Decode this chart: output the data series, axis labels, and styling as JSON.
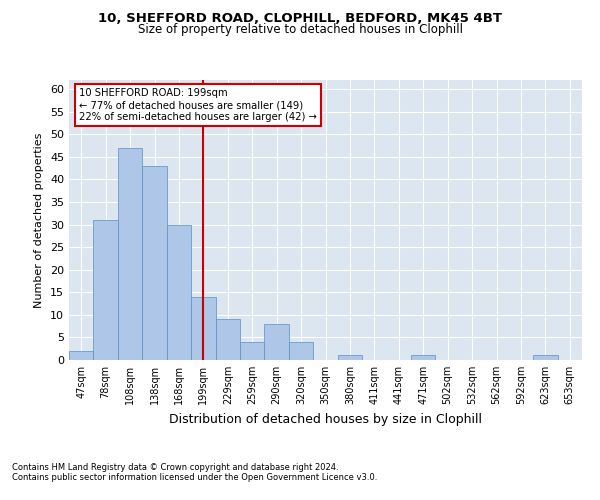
{
  "title_line1": "10, SHEFFORD ROAD, CLOPHILL, BEDFORD, MK45 4BT",
  "title_line2": "Size of property relative to detached houses in Clophill",
  "xlabel": "Distribution of detached houses by size in Clophill",
  "ylabel": "Number of detached properties",
  "categories": [
    "47sqm",
    "78sqm",
    "108sqm",
    "138sqm",
    "168sqm",
    "199sqm",
    "229sqm",
    "259sqm",
    "290sqm",
    "320sqm",
    "350sqm",
    "380sqm",
    "411sqm",
    "441sqm",
    "471sqm",
    "502sqm",
    "532sqm",
    "562sqm",
    "592sqm",
    "623sqm",
    "653sqm"
  ],
  "values": [
    2,
    31,
    47,
    43,
    30,
    14,
    9,
    4,
    8,
    4,
    0,
    1,
    0,
    0,
    1,
    0,
    0,
    0,
    0,
    1,
    0
  ],
  "bar_color": "#aec6e8",
  "bar_edge_color": "#5a8fc2",
  "marker_index": 5,
  "annotation_line1": "10 SHEFFORD ROAD: 199sqm",
  "annotation_line2": "← 77% of detached houses are smaller (149)",
  "annotation_line3": "22% of semi-detached houses are larger (42) →",
  "marker_color": "#cc0000",
  "ylim": [
    0,
    62
  ],
  "yticks": [
    0,
    5,
    10,
    15,
    20,
    25,
    30,
    35,
    40,
    45,
    50,
    55,
    60
  ],
  "footer_line1": "Contains HM Land Registry data © Crown copyright and database right 2024.",
  "footer_line2": "Contains public sector information licensed under the Open Government Licence v3.0.",
  "plot_bg_color": "#dce6f0"
}
